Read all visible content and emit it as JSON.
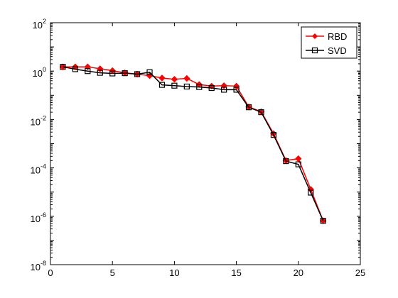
{
  "chart_data": {
    "type": "line",
    "title": "",
    "xlabel": "",
    "ylabel": "",
    "xlim": [
      0,
      25
    ],
    "ylim": [
      1e-08,
      100
    ],
    "yscale": "log",
    "grid": false,
    "legend_position": "top-right",
    "x_ticks": [
      0,
      5,
      10,
      15,
      20,
      25
    ],
    "x_tick_labels": [
      "0",
      "5",
      "10",
      "15",
      "20",
      "25"
    ],
    "y_ticks": [
      {
        "value": 100,
        "base": "10",
        "exp": "2"
      },
      {
        "value": 1,
        "base": "10",
        "exp": "0"
      },
      {
        "value": 0.01,
        "base": "10",
        "exp": "-2"
      },
      {
        "value": 0.0001,
        "base": "10",
        "exp": "-4"
      },
      {
        "value": 1e-06,
        "base": "10",
        "exp": "-6"
      },
      {
        "value": 1e-08,
        "base": "10",
        "exp": "-8"
      }
    ],
    "x": [
      1,
      2,
      3,
      4,
      5,
      6,
      7,
      8,
      9,
      10,
      11,
      12,
      13,
      14,
      15,
      16,
      17,
      18,
      19,
      20,
      21,
      22
    ],
    "series": [
      {
        "name": "RBD",
        "color": "#ff0000",
        "marker": "diamond-filled",
        "values": [
          1.5,
          1.5,
          1.5,
          1.25,
          1.05,
          0.85,
          0.75,
          0.65,
          0.52,
          0.46,
          0.5,
          0.28,
          0.24,
          0.25,
          0.24,
          0.033,
          0.021,
          0.0026,
          0.0002,
          0.00024,
          1.3e-05,
          6.5e-07
        ]
      },
      {
        "name": "SVD",
        "color": "#000000",
        "marker": "square-open",
        "values": [
          1.5,
          1.2,
          1.0,
          0.85,
          0.8,
          0.82,
          0.75,
          0.9,
          0.27,
          0.25,
          0.23,
          0.22,
          0.2,
          0.17,
          0.17,
          0.032,
          0.02,
          0.0023,
          0.00019,
          0.00014,
          9.5e-06,
          6.5e-07
        ]
      }
    ]
  }
}
